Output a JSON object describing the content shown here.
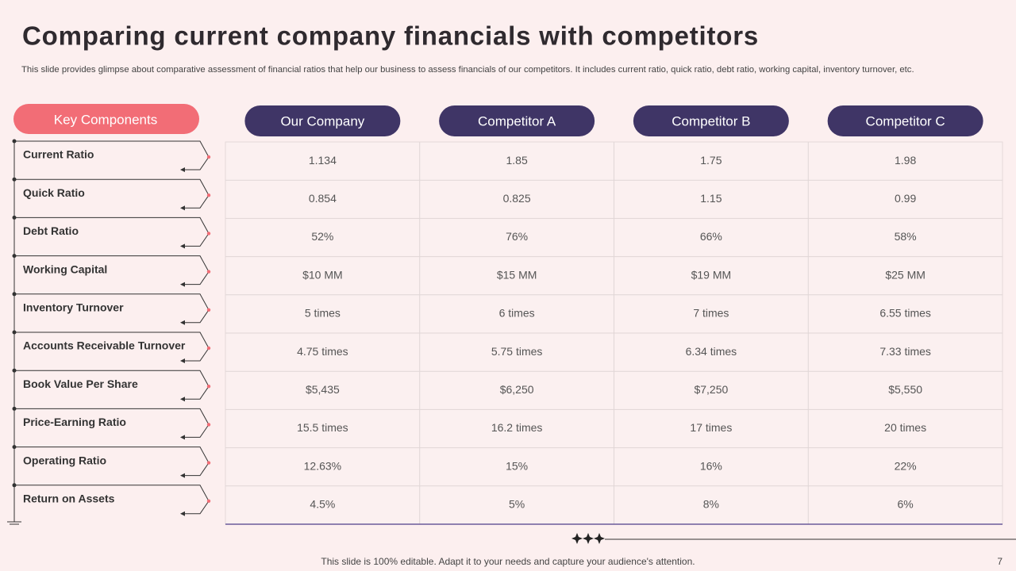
{
  "header": {
    "title": "Comparing current company financials with competitors",
    "subtitle": "This slide provides glimpse about comparative assessment of financial ratios that help our business to assess financials of our competitors. It includes current ratio, quick ratio, debt ratio, working capital, inventory turnover, etc."
  },
  "table": {
    "key_header": "Key Components",
    "columns": [
      "Our Company",
      "Competitor A",
      "Competitor B",
      "Competitor C"
    ],
    "rows": [
      {
        "label": "Current Ratio",
        "cells": [
          "1.134",
          "1.85",
          "1.75",
          "1.98"
        ]
      },
      {
        "label": "Quick Ratio",
        "cells": [
          "0.854",
          "0.825",
          "1.15",
          "0.99"
        ]
      },
      {
        "label": "Debt Ratio",
        "cells": [
          "52%",
          "76%",
          "66%",
          "58%"
        ]
      },
      {
        "label": "Working Capital",
        "cells": [
          "$10 MM",
          "$15 MM",
          "$19 MM",
          "$25 MM"
        ]
      },
      {
        "label": "Inventory Turnover",
        "cells": [
          "5 times",
          "6 times",
          "7 times",
          "6.55 times"
        ]
      },
      {
        "label": "Accounts Receivable Turnover",
        "cells": [
          "4.75 times",
          "5.75 times",
          "6.34 times",
          "7.33 times"
        ]
      },
      {
        "label": "Book Value Per Share",
        "cells": [
          "$5,435",
          "$6,250",
          "$7,250",
          "$5,550"
        ]
      },
      {
        "label": "Price-Earning Ratio",
        "cells": [
          "15.5 times",
          "16.2 times",
          "17 times",
          "20 times"
        ]
      },
      {
        "label": "Operating Ratio",
        "cells": [
          "12.63%",
          "15%",
          "16%",
          "22%"
        ]
      },
      {
        "label": "Return on Assets",
        "cells": [
          "4.5%",
          "5%",
          "8%",
          "6%"
        ]
      }
    ]
  },
  "footer": {
    "note": "This slide is 100% editable. Adapt it to your needs and capture your audience's attention.",
    "page": "7"
  }
}
